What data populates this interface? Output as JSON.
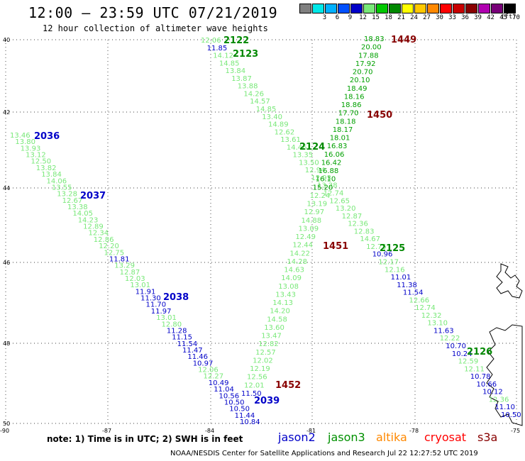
{
  "header": {
    "title": "12:00 – 23:59 UTC 07/21/2019",
    "subtitle": "12 hour collection of altimeter wave heights"
  },
  "scale": {
    "unit": "(ft)",
    "bins": [
      {
        "label": "",
        "color": "#808080"
      },
      {
        "label": "3",
        "color": "#00e8e8"
      },
      {
        "label": "6",
        "color": "#00b0ff"
      },
      {
        "label": "9",
        "color": "#0050ff"
      },
      {
        "label": "12",
        "color": "#0000c8"
      },
      {
        "label": "15",
        "color": "#78e878"
      },
      {
        "label": "18",
        "color": "#00c800"
      },
      {
        "label": "21",
        "color": "#008800"
      },
      {
        "label": "24",
        "color": "#ffff00"
      },
      {
        "label": "27",
        "color": "#ffc800"
      },
      {
        "label": "30",
        "color": "#ff8800"
      },
      {
        "label": "33",
        "color": "#ff0000"
      },
      {
        "label": "36",
        "color": "#c80000"
      },
      {
        "label": "39",
        "color": "#880000"
      },
      {
        "label": "42",
        "color": "#b000b0"
      },
      {
        "label": "45",
        "color": "#780078"
      },
      {
        "label": "70",
        "color": "#000000"
      }
    ]
  },
  "colors": {
    "low": "#0000c8",
    "mid": "#78e878",
    "high": "#00a000",
    "cryo": "#880000"
  },
  "axes": {
    "lat_labels": [
      "40",
      "42",
      "44",
      "46",
      "48",
      "50"
    ],
    "lon_labels": [
      "-90",
      "-87",
      "-84",
      "-81",
      "-78",
      "-75"
    ]
  },
  "tracks": [
    {
      "id": "2036",
      "label_color": "#0000c8",
      "obs": [
        13.46,
        13.8,
        13.93,
        13.12,
        12.5,
        13.82,
        13.84,
        14.06,
        13.55,
        13.28,
        12.67,
        13.38,
        14.05,
        14.23,
        12.89,
        12.34,
        12.86,
        12.2,
        12.75,
        11.81,
        13.29,
        12.87,
        12.03,
        13.01,
        11.91,
        11.3,
        11.7,
        11.97,
        13.01,
        12.8,
        11.28,
        11.15,
        11.54,
        11.47,
        11.46,
        10.97,
        12.06,
        12.27,
        10.49,
        11.04,
        10.56,
        10.5,
        10.5,
        11.44,
        10.84
      ]
    },
    {
      "id": "2122",
      "label_color": "#008800",
      "obs": [
        12.06,
        11.85,
        14.12,
        14.85,
        13.84,
        13.87,
        13.88,
        14.26,
        14.57,
        14.85,
        13.4,
        14.89,
        12.62,
        13.61,
        14.46,
        13.35,
        13.5,
        12.94,
        12.93,
        13.28,
        12.74,
        12.65,
        13.2,
        12.87,
        12.36,
        12.83,
        14.67,
        12.75,
        10.96,
        12.17,
        12.16,
        11.01,
        11.38,
        11.54,
        12.66,
        12.74,
        12.32,
        13.1,
        11.63,
        12.22,
        10.7,
        10.24,
        12.59,
        12.11,
        10.78,
        10.66,
        10.12,
        12.36,
        11.1,
        10.5
      ]
    },
    {
      "id": "1449",
      "label_color": "#880000",
      "obs": [
        18.83,
        20.0,
        17.88,
        17.92,
        20.7,
        20.1,
        18.49,
        18.16,
        18.86,
        17.7,
        18.18,
        18.17,
        18.01,
        16.83,
        16.06,
        16.42,
        16.88,
        16.1,
        15.2,
        12.24,
        13.19,
        12.97,
        14.88,
        13.09,
        12.49,
        12.44,
        14.22,
        14.28,
        14.63,
        14.09,
        13.08,
        13.43,
        14.13,
        14.2,
        14.58,
        13.6,
        13.47,
        12.82,
        12.57,
        12.02,
        12.19,
        12.56,
        12.01,
        11.5
      ]
    }
  ],
  "pass_labels": [
    "2036",
    "2037",
    "2038",
    "2039",
    "2122",
    "2123",
    "2124",
    "2125",
    "2126",
    "1449",
    "1450",
    "1451",
    "1452"
  ],
  "footer": {
    "note": "note:  1) Time is in UTC;  2) SWH is in feet",
    "sat_jason2": "jason2",
    "sat_jason3": "jason3",
    "sat_altika": "altika",
    "sat_cryosat": "cryosat",
    "sat_s3a": "s3a",
    "credit": "NOAA/NESDIS Center for Satellite Applications and Research    Jul 22 12:27:52 UTC 2019"
  }
}
